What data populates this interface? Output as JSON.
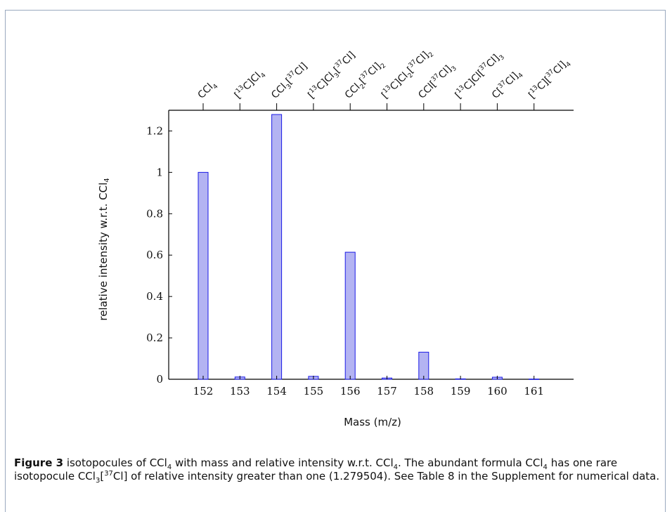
{
  "chart_data": {
    "type": "bar",
    "categories": [
      "152",
      "153",
      "154",
      "155",
      "156",
      "157",
      "158",
      "159",
      "160",
      "161"
    ],
    "values": [
      1.0,
      0.011,
      1.279504,
      0.014,
      0.614,
      0.006,
      0.131,
      0.002,
      0.01,
      0.001
    ],
    "top_labels": [
      {
        "html": "CCl<sub>4</sub>"
      },
      {
        "html": "[<sup>13</sup>C]Cl<sub>4</sub>"
      },
      {
        "html": "CCl<sub>3</sub>[<sup>37</sup>Cl]"
      },
      {
        "html": "[<sup>13</sup>C]Cl<sub>3</sub>[<sup>37</sup>Cl]"
      },
      {
        "html": "CCl<sub>2</sub>[<sup>37</sup>Cl]<sub>2</sub>"
      },
      {
        "html": "[<sup>13</sup>C]Cl<sub>2</sub>[<sup>37</sup>Cl]<sub>2</sub>"
      },
      {
        "html": "CCl[<sup>37</sup>Cl]<sub>3</sub>"
      },
      {
        "html": "[<sup>13</sup>C]Cl[<sup>37</sup>Cl]<sub>3</sub>"
      },
      {
        "html": "C[<sup>37</sup>Cl]<sub>4</sub>"
      },
      {
        "html": "[<sup>13</sup>C][<sup>37</sup>Cl]<sub>4</sub>"
      }
    ],
    "top_labels_text": [
      "CCl4",
      "[13C]Cl4",
      "CCl3[37Cl]",
      "[13C]Cl3[37Cl]",
      "CCl2[37Cl]2",
      "[13C]Cl2[37Cl]2",
      "CCl[37Cl]3",
      "[13C]Cl[37Cl]3",
      "C[37Cl]4",
      "[13C][37Cl]4"
    ],
    "xlabel": "Mass (m/z)",
    "ylabel": "relative intensity w.r.t. CCl4",
    "ylim": [
      0,
      1.3
    ],
    "yticks": [
      0,
      0.2,
      0.4,
      0.6,
      0.8,
      1,
      1.2
    ],
    "ytick_labels": [
      "0",
      "0.2",
      "0.4",
      "0.6",
      "0.8",
      "1",
      "1.2"
    ],
    "bar_fill": "#b3b3f2",
    "bar_stroke": "#1a1ae6",
    "grid": false
  },
  "caption": {
    "label": "Figure 3",
    "text_html": " isotopocules of CCl<sub>4</sub> with mass and relative intensity w.r.t. CCl<sub>4</sub>. The abundant formula CCl<sub>4</sub> has one rare isotopocule CCl<sub>3</sub>[<sup>37</sup>Cl] of relative intensity greater than one (1.279504). See Table 8 in the Supplement for numerical data."
  }
}
